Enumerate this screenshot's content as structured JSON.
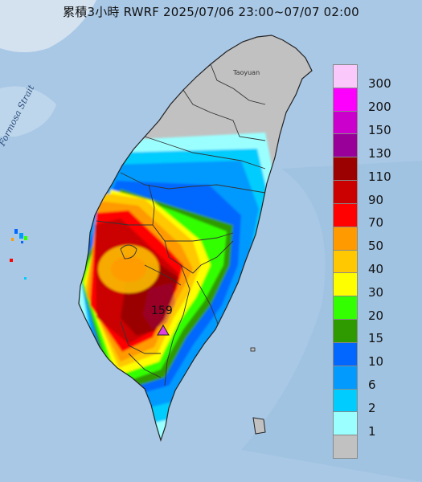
{
  "title": "累積3小時 RWRF 2025/07/06 23:00~07/07 02:00",
  "map_labels": {
    "strait": "Formosa Strait",
    "city": "Taoyuan"
  },
  "max_marker": {
    "value": "159",
    "symbol": "triangle",
    "color": "#e040e0"
  },
  "legend": {
    "unit_note": "",
    "levels": [
      {
        "label": "300",
        "color": "#fbc8fb"
      },
      {
        "label": "200",
        "color": "#fd00fd"
      },
      {
        "label": "150",
        "color": "#cc00cc"
      },
      {
        "label": "130",
        "color": "#99009a"
      },
      {
        "label": "110",
        "color": "#9b0101"
      },
      {
        "label": "90",
        "color": "#cb0000"
      },
      {
        "label": "70",
        "color": "#fe0100"
      },
      {
        "label": "50",
        "color": "#ff9a00"
      },
      {
        "label": "40",
        "color": "#ffc801"
      },
      {
        "label": "30",
        "color": "#fefe00"
      },
      {
        "label": "20",
        "color": "#33ff00"
      },
      {
        "label": "15",
        "color": "#2e9a00"
      },
      {
        "label": "10",
        "color": "#0167fe"
      },
      {
        "label": "6",
        "color": "#039afe"
      },
      {
        "label": "2",
        "color": "#00ccfe"
      },
      {
        "label": "1",
        "color": "#9cffff"
      },
      {
        "label": "",
        "color": "#c1c1c1"
      }
    ]
  },
  "colors": {
    "sea": "#a9c8e6",
    "land_dry": "#c1c1c1",
    "county_border": "#333333"
  }
}
